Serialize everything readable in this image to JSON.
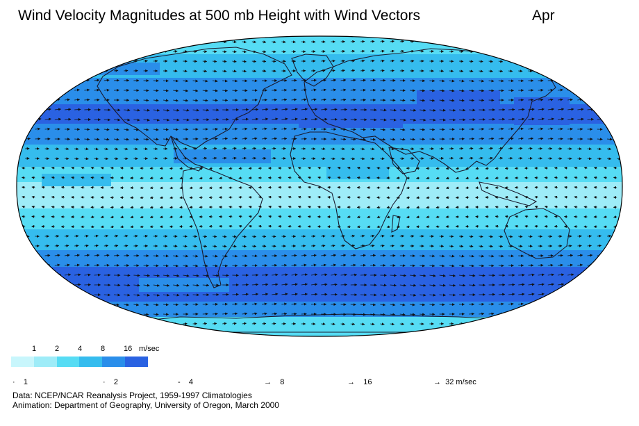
{
  "title": "Wind Velocity Magnitudes at 500 mb Height with Wind Vectors",
  "month": "Apr",
  "legend": {
    "magnitude_labels": [
      "1",
      "2",
      "4",
      "8",
      "16",
      "m/sec"
    ],
    "colors": [
      "#c8f6fc",
      "#9eecf8",
      "#56dcf4",
      "#35bcee",
      "#2a8eea",
      "#2a62e2"
    ],
    "vector_labels": [
      "1",
      "2",
      "4",
      "8",
      "16",
      "32 m/sec"
    ]
  },
  "credits": {
    "line1": "Data:  NCEP/NCAR Reanalysis Project, 1959-1997 Climatologies",
    "line2": "Animation:  Department of Geography, University of Oregon, March 2000"
  },
  "map": {
    "projection": "Robinson",
    "ocean_outline_color": "#000000",
    "band_colors": {
      "polar": "#56dcf4",
      "midlat": "#2a8eea",
      "jet": "#2a62e2",
      "subtropic": "#35bcee",
      "tropic": "#56dcf4",
      "calm": "#9eecf8"
    }
  }
}
